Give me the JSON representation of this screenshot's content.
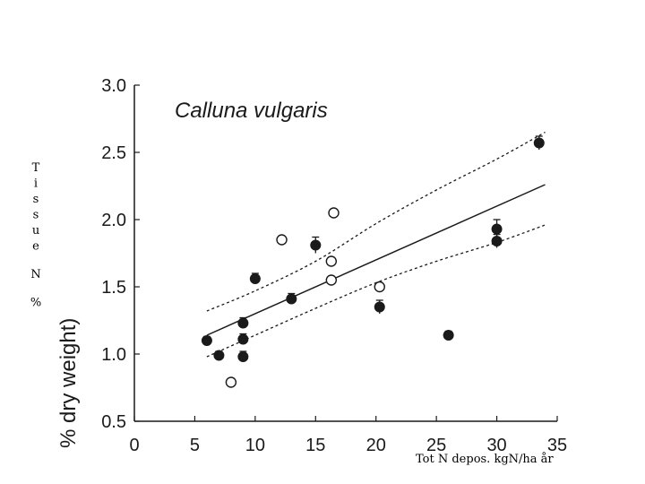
{
  "chart_data": {
    "type": "scatter",
    "title": "Calluna vulgaris",
    "xlabel": "Tot N depos. kgN/ha år",
    "ylabel_overlay": "Tissue N %",
    "ylabel_original": "% dry weight)",
    "xlim": [
      0,
      35
    ],
    "ylim": [
      0.5,
      3.0
    ],
    "xticks": [
      0,
      5,
      10,
      15,
      20,
      25,
      30,
      35
    ],
    "yticks": [
      0.5,
      1.0,
      1.5,
      2.0,
      2.5,
      3.0
    ],
    "ytick_labels": [
      "0.5",
      "1.0",
      "1.5",
      "2.0",
      "2.5",
      "3.0"
    ],
    "series": [
      {
        "name": "filled",
        "marker": "filled-circle",
        "points": [
          {
            "x": 6,
            "y": 1.1,
            "err": 0.03
          },
          {
            "x": 7,
            "y": 0.99,
            "err": 0.03
          },
          {
            "x": 9,
            "y": 1.23,
            "err": 0.04
          },
          {
            "x": 9,
            "y": 1.11,
            "err": 0.04
          },
          {
            "x": 9,
            "y": 0.98,
            "err": 0.04
          },
          {
            "x": 10,
            "y": 1.56,
            "err": 0.04
          },
          {
            "x": 13,
            "y": 1.41,
            "err": 0.04
          },
          {
            "x": 15,
            "y": 1.81,
            "err": 0.06
          },
          {
            "x": 20.3,
            "y": 1.35,
            "err": 0.05
          },
          {
            "x": 26,
            "y": 1.14,
            "err": 0.03
          },
          {
            "x": 30,
            "y": 1.93,
            "err": 0.07
          },
          {
            "x": 30,
            "y": 1.84,
            "err": 0.05
          },
          {
            "x": 33.5,
            "y": 2.57,
            "err": 0.05
          }
        ]
      },
      {
        "name": "open",
        "marker": "open-circle",
        "points": [
          {
            "x": 8,
            "y": 0.79
          },
          {
            "x": 12.2,
            "y": 1.85
          },
          {
            "x": 16.3,
            "y": 1.69
          },
          {
            "x": 16.3,
            "y": 1.55
          },
          {
            "x": 16.5,
            "y": 2.05
          },
          {
            "x": 20.3,
            "y": 1.5
          }
        ]
      }
    ],
    "regression": {
      "x": [
        6,
        34
      ],
      "y": [
        1.14,
        2.26
      ]
    },
    "ci_upper": {
      "x": [
        6,
        10,
        15,
        20,
        25,
        30,
        34
      ],
      "y": [
        1.32,
        1.47,
        1.69,
        1.97,
        2.22,
        2.45,
        2.65
      ]
    },
    "ci_lower": {
      "x": [
        6,
        10,
        15,
        20,
        25,
        30,
        34
      ],
      "y": [
        0.98,
        1.14,
        1.34,
        1.53,
        1.69,
        1.83,
        1.96
      ]
    }
  },
  "colors": {
    "ink": "#1a1a1a",
    "background": "#ffffff"
  }
}
